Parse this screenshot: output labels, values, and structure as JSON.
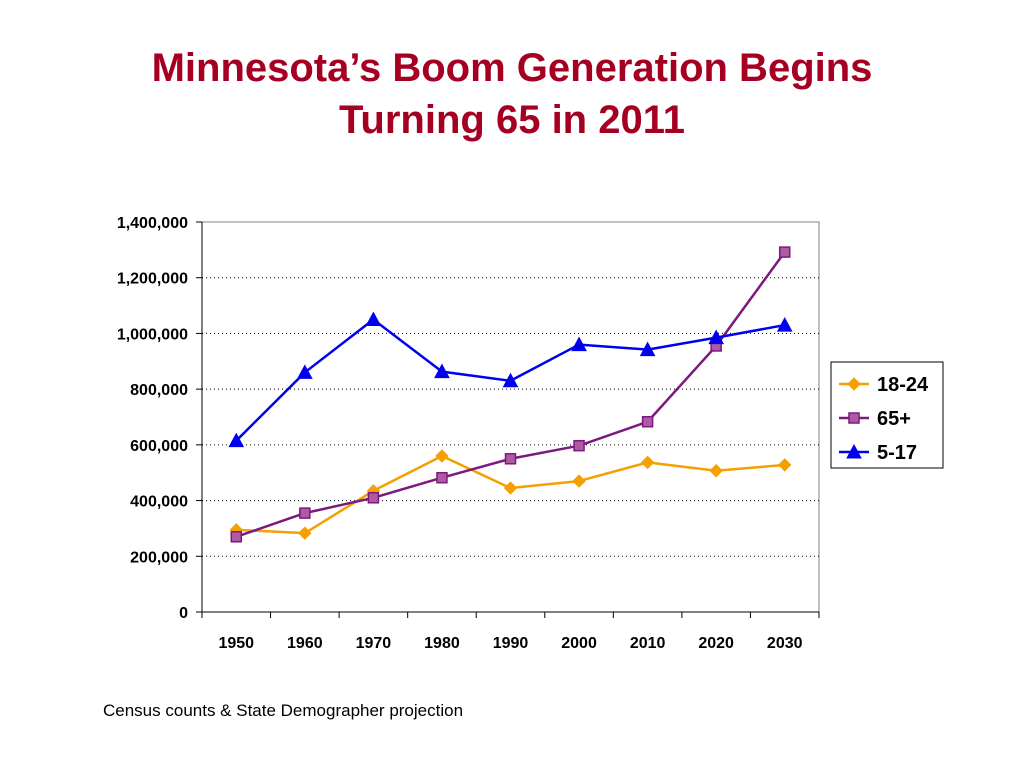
{
  "slide": {
    "title_line1": "Minnesota’s Boom Generation Begins",
    "title_line2": "Turning 65 in 2011",
    "source_note": "Census counts & State Demographer projection"
  },
  "chart_data": {
    "type": "line",
    "title": "",
    "xlabel": "",
    "ylabel": "",
    "x": [
      "1950",
      "1960",
      "1970",
      "1980",
      "1990",
      "2000",
      "2010",
      "2020",
      "2030"
    ],
    "ylim": [
      0,
      1400000
    ],
    "yticks": [
      0,
      200000,
      400000,
      600000,
      800000,
      1000000,
      1200000,
      1400000
    ],
    "ytick_labels": [
      "0",
      "200,000",
      "400,000",
      "600,000",
      "800,000",
      "1,000,000",
      "1,200,000",
      "1,400,000"
    ],
    "grid": "horizontal dotted",
    "legend_position": "right",
    "series": [
      {
        "name": "18-24",
        "color": "#f5a000",
        "marker": "diamond",
        "values": [
          295000,
          283000,
          435000,
          560000,
          445000,
          470000,
          537000,
          507000,
          528000
        ]
      },
      {
        "name": "65+",
        "color": "#7b1a7e",
        "marker": "square",
        "values": [
          270000,
          355000,
          410000,
          482000,
          550000,
          597000,
          683000,
          955000,
          1292000
        ]
      },
      {
        "name": "5-17",
        "color": "#0000ee",
        "marker": "triangle",
        "values": [
          615000,
          860000,
          1050000,
          863000,
          830000,
          960000,
          942000,
          985000,
          1030000
        ]
      }
    ]
  }
}
